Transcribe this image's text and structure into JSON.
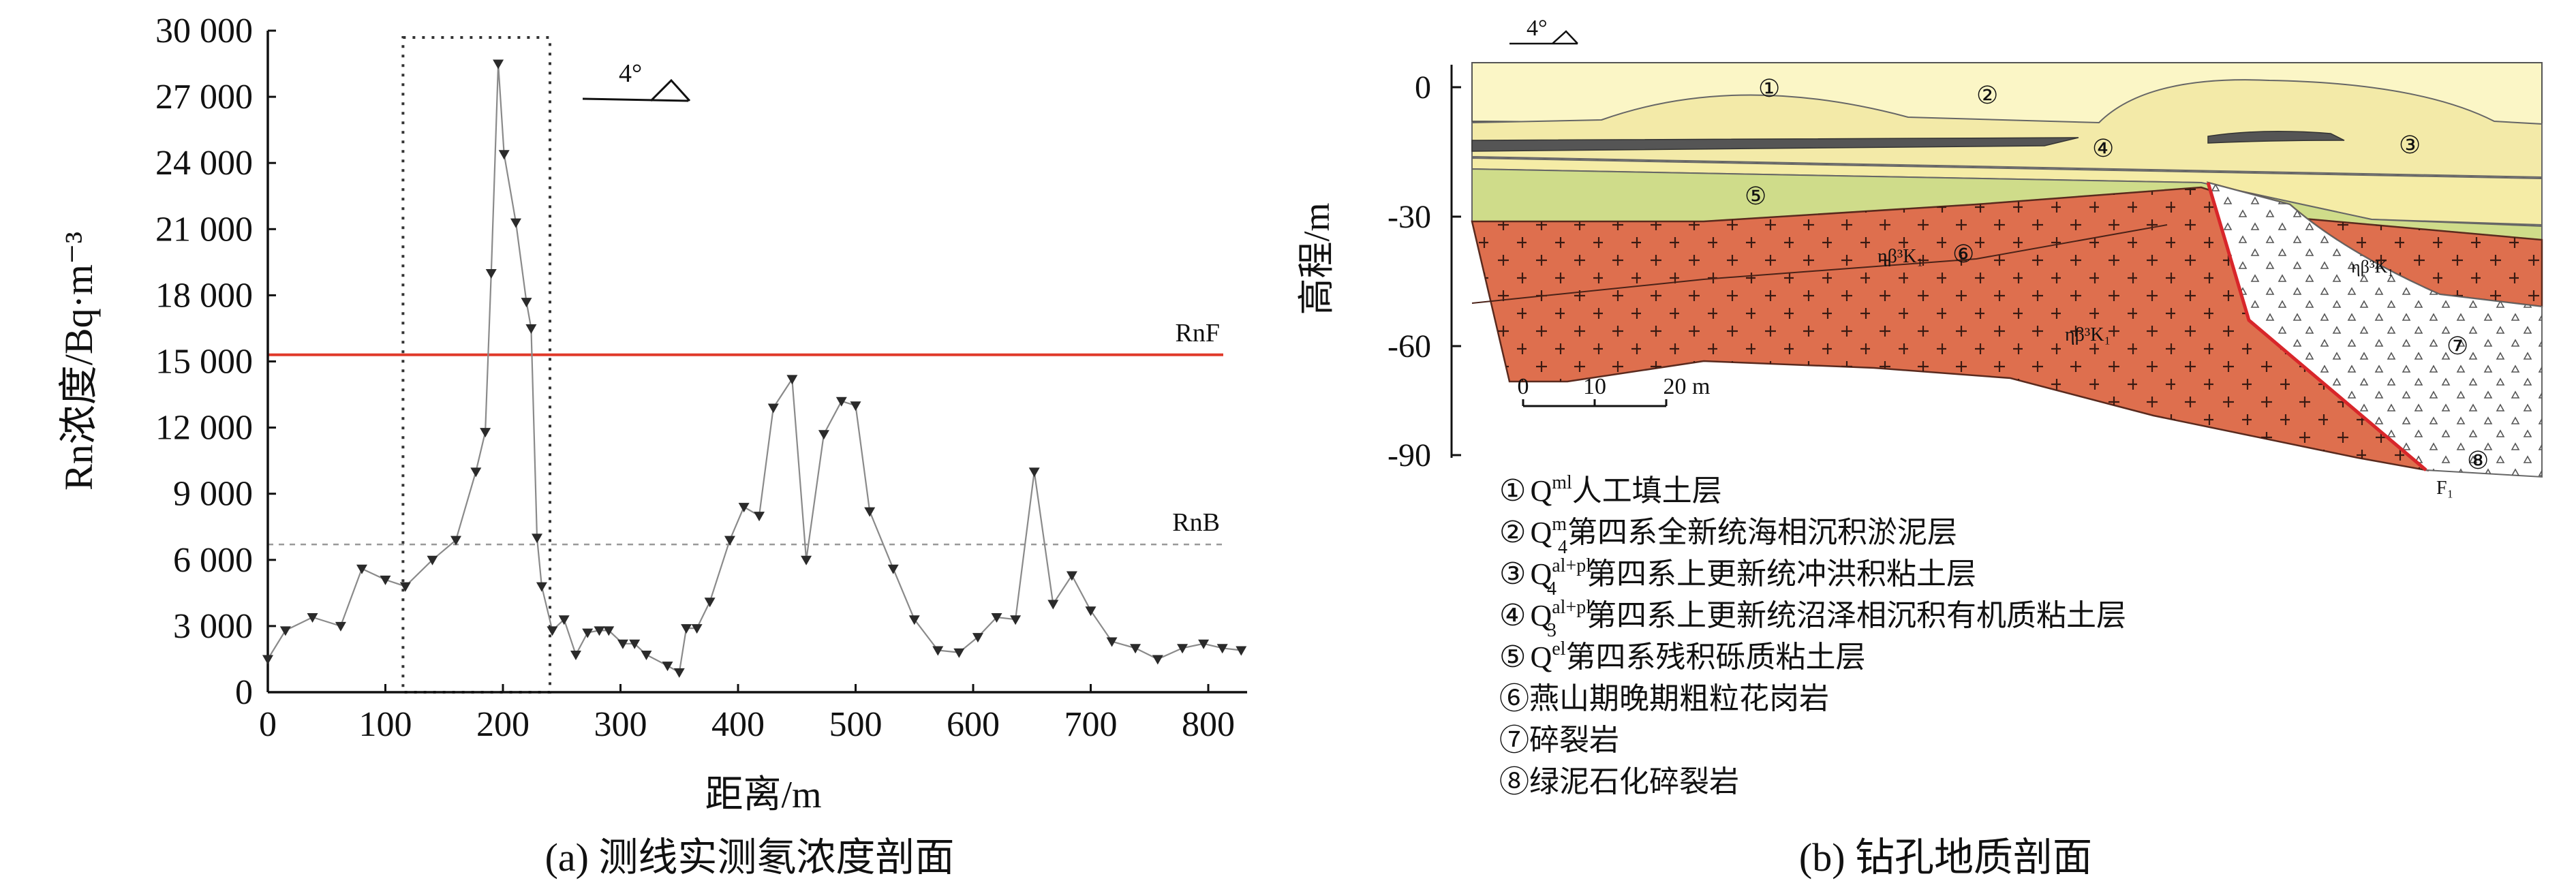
{
  "chart_data": [
    {
      "type": "line",
      "caption": "(a) 测线实测氡浓度剖面",
      "xlabel": "距离/m",
      "ylabel": "Rn浓度/Bq·m⁻³",
      "xlim": [
        0,
        830
      ],
      "ylim": [
        0,
        30000
      ],
      "x_ticks": [
        0,
        100,
        200,
        300,
        400,
        500,
        600,
        700,
        800
      ],
      "x_tick_labels": [
        "0",
        "100",
        "200",
        "300",
        "400",
        "500",
        "600",
        "700",
        "800"
      ],
      "y_ticks": [
        0,
        3000,
        6000,
        9000,
        12000,
        15000,
        18000,
        21000,
        24000,
        27000,
        30000
      ],
      "y_tick_labels": [
        "0",
        "3 000",
        "6 000",
        "9 000",
        "12 000",
        "15 000",
        "18 000",
        "21 000",
        "24 000",
        "27 000",
        "30 000"
      ],
      "grid": false,
      "series": [
        {
          "name": "Rn",
          "marker": "down-triangle",
          "x": [
            0,
            15,
            38,
            62,
            80,
            100,
            117,
            140,
            160,
            177,
            185,
            190,
            196,
            201,
            211,
            220,
            224,
            229,
            233,
            242,
            252,
            262,
            272,
            282,
            290,
            302,
            312,
            322,
            340,
            350,
            356,
            365,
            376,
            393,
            405,
            418,
            430,
            446,
            458,
            473,
            488,
            500,
            512,
            532,
            550,
            570,
            588,
            604,
            620,
            636,
            652,
            668,
            684,
            700,
            718,
            738,
            757,
            778,
            796,
            812,
            828
          ],
          "y": [
            1500,
            2800,
            3400,
            3000,
            5600,
            5100,
            4800,
            6000,
            6900,
            10000,
            11800,
            19000,
            28500,
            24400,
            21300,
            17700,
            16500,
            7000,
            4800,
            2800,
            3300,
            1700,
            2700,
            2800,
            2800,
            2200,
            2200,
            1700,
            1200,
            900,
            2900,
            2900,
            4100,
            6900,
            8400,
            8000,
            12900,
            14200,
            6000,
            11700,
            13200,
            13000,
            8200,
            5600,
            3300,
            1900,
            1800,
            2500,
            3400,
            3300,
            10000,
            4000,
            5300,
            3700,
            2300,
            2000,
            1500,
            2000,
            2200,
            2000,
            1900
          ]
        }
      ],
      "reference_lines": [
        {
          "label": "RnF",
          "value": 15300,
          "color": "#e03a2a"
        },
        {
          "label": "RnB",
          "value": 6700,
          "color": "#9a9a9a"
        }
      ],
      "highlight_x_range": [
        115,
        240
      ],
      "north_arrow": "4°"
    },
    {
      "type": "diagram",
      "caption": "(b) 钻孔地质剖面",
      "ylabel": "高程/m",
      "y_ticks": [
        0,
        -30,
        -60,
        -90
      ],
      "y_tick_labels": [
        "0",
        "-30",
        "-60",
        "-90"
      ],
      "north_arrow": "4°",
      "scale_bar": {
        "ticks": [
          "0",
          "10",
          "20 m"
        ]
      },
      "inline_labels": {
        "rock_code_a": "ηβ³K₁",
        "rock_code_b": "ηβ³K₁",
        "rock_code_c": "ηβ³K₁",
        "fault": "F₁"
      },
      "layer_markers": [
        "①",
        "②",
        "③",
        "④",
        "⑤",
        "⑥",
        "⑦",
        "⑧"
      ],
      "legend": [
        {
          "num": "①",
          "sym": "Q",
          "sup": "ml",
          "sub": "",
          "text": "人工填土层"
        },
        {
          "num": "②",
          "sym": "Q",
          "sup": "m",
          "sub": "4",
          "text": "第四系全新统海相沉积淤泥层"
        },
        {
          "num": "③",
          "sym": "Q",
          "sup": "al+pl",
          "sub": "4",
          "text": "第四系上更新统冲洪积粘土层"
        },
        {
          "num": "④",
          "sym": "Q",
          "sup": "al+pl",
          "sub": "3",
          "text": "第四系上更新统沼泽相沉积有机质粘土层"
        },
        {
          "num": "⑤",
          "sym": "Q",
          "sup": "el",
          "sub": "",
          "text": "第四系残积砾质粘土层"
        },
        {
          "num": "⑥",
          "sym": "",
          "sup": "",
          "sub": "",
          "text": "燕山期晚期粗粒花岗岩"
        },
        {
          "num": "⑦",
          "sym": "",
          "sup": "",
          "sub": "",
          "text": "碎裂岩"
        },
        {
          "num": "⑧",
          "sym": "",
          "sup": "",
          "sub": "",
          "text": "绿泥石化碎裂岩"
        }
      ],
      "colors": {
        "fill": "#fbf6c6",
        "muck": "#f2eaa6",
        "clay": "#f5eca8",
        "gravel_clay": "#cfdc8a",
        "granite": "#de6f4e",
        "fault": "#d8262a",
        "reference_red": "#e03a2a"
      }
    }
  ]
}
